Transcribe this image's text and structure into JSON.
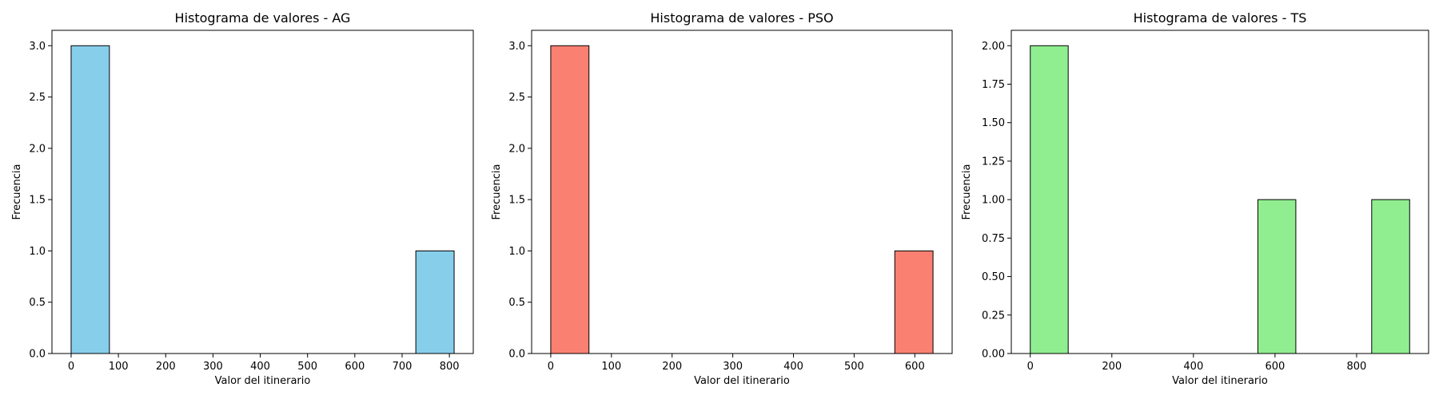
{
  "chart_data": [
    {
      "type": "histogram",
      "title": "Histograma de valores - AG",
      "xlabel": "Valor del itinerario",
      "ylabel": "Frecuencia",
      "color": "#87CEEB",
      "edgecolor": "#000000",
      "bins": [
        {
          "start": 0,
          "end": 81,
          "count": 3
        },
        {
          "start": 81,
          "end": 162,
          "count": 0
        },
        {
          "start": 162,
          "end": 243,
          "count": 0
        },
        {
          "start": 243,
          "end": 324,
          "count": 0
        },
        {
          "start": 324,
          "end": 405,
          "count": 0
        },
        {
          "start": 405,
          "end": 486,
          "count": 0
        },
        {
          "start": 486,
          "end": 567,
          "count": 0
        },
        {
          "start": 567,
          "end": 648,
          "count": 0
        },
        {
          "start": 648,
          "end": 729,
          "count": 0
        },
        {
          "start": 729,
          "end": 810,
          "count": 1
        }
      ],
      "xlim": [
        -40.5,
        850.5
      ],
      "ylim": [
        0,
        3.15
      ],
      "xticks": [
        0,
        100,
        200,
        300,
        400,
        500,
        600,
        700,
        800
      ],
      "xtick_labels": [
        "0",
        "100",
        "200",
        "300",
        "400",
        "500",
        "600",
        "700",
        "800"
      ],
      "yticks": [
        0,
        0.5,
        1.0,
        1.5,
        2.0,
        2.5,
        3.0
      ],
      "ytick_labels": [
        "0.0",
        "0.5",
        "1.0",
        "1.5",
        "2.0",
        "2.5",
        "3.0"
      ],
      "grid": false
    },
    {
      "type": "histogram",
      "title": "Histograma de valores - PSO",
      "xlabel": "Valor del itinerario",
      "ylabel": "Frecuencia",
      "color": "#FA8072",
      "edgecolor": "#000000",
      "bins": [
        {
          "start": 0,
          "end": 63,
          "count": 3
        },
        {
          "start": 63,
          "end": 126,
          "count": 0
        },
        {
          "start": 126,
          "end": 189,
          "count": 0
        },
        {
          "start": 189,
          "end": 252,
          "count": 0
        },
        {
          "start": 252,
          "end": 315,
          "count": 0
        },
        {
          "start": 315,
          "end": 378,
          "count": 0
        },
        {
          "start": 378,
          "end": 441,
          "count": 0
        },
        {
          "start": 441,
          "end": 504,
          "count": 0
        },
        {
          "start": 504,
          "end": 567,
          "count": 0
        },
        {
          "start": 567,
          "end": 630,
          "count": 1
        }
      ],
      "xlim": [
        -31.5,
        661.5
      ],
      "ylim": [
        0,
        3.15
      ],
      "xticks": [
        0,
        100,
        200,
        300,
        400,
        500,
        600
      ],
      "xtick_labels": [
        "0",
        "100",
        "200",
        "300",
        "400",
        "500",
        "600"
      ],
      "yticks": [
        0,
        0.5,
        1.0,
        1.5,
        2.0,
        2.5,
        3.0
      ],
      "ytick_labels": [
        "0.0",
        "0.5",
        "1.0",
        "1.5",
        "2.0",
        "2.5",
        "3.0"
      ],
      "grid": false
    },
    {
      "type": "histogram",
      "title": "Histograma de valores - TS",
      "xlabel": "Valor del itinerario",
      "ylabel": "Frecuencia",
      "color": "#90EE90",
      "edgecolor": "#000000",
      "bins": [
        {
          "start": 0,
          "end": 93,
          "count": 2
        },
        {
          "start": 93,
          "end": 186,
          "count": 0
        },
        {
          "start": 186,
          "end": 279,
          "count": 0
        },
        {
          "start": 279,
          "end": 372,
          "count": 0
        },
        {
          "start": 372,
          "end": 465,
          "count": 0
        },
        {
          "start": 465,
          "end": 558,
          "count": 0
        },
        {
          "start": 558,
          "end": 651,
          "count": 1
        },
        {
          "start": 651,
          "end": 744,
          "count": 0
        },
        {
          "start": 744,
          "end": 837,
          "count": 0
        },
        {
          "start": 837,
          "end": 930,
          "count": 1
        }
      ],
      "xlim": [
        -46.5,
        976.5
      ],
      "ylim": [
        0,
        2.1
      ],
      "xticks": [
        0,
        200,
        400,
        600,
        800
      ],
      "xtick_labels": [
        "0",
        "200",
        "400",
        "600",
        "800"
      ],
      "yticks": [
        0,
        0.25,
        0.5,
        0.75,
        1.0,
        1.25,
        1.5,
        1.75,
        2.0
      ],
      "ytick_labels": [
        "0.00",
        "0.25",
        "0.50",
        "0.75",
        "1.00",
        "1.25",
        "1.50",
        "1.75",
        "2.00"
      ],
      "grid": false
    }
  ]
}
